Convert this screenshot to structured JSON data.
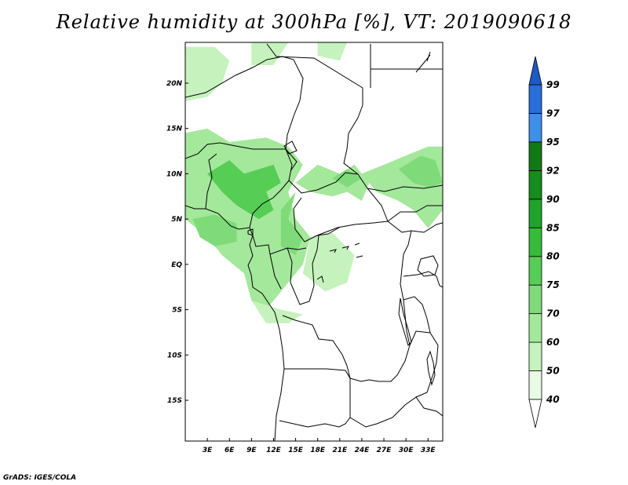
{
  "title": "Relative humidity at 300hPa [%], VT: 2019090618",
  "credit": "GrADS: IGES/COLA",
  "map": {
    "projection": "lat-lon",
    "lon_range": [
      0,
      35
    ],
    "lat_range": [
      -19.5,
      24.5
    ],
    "lat_labels": [
      "20N",
      "15N",
      "10N",
      "5N",
      "EQ",
      "5S",
      "10S",
      "15S"
    ],
    "lat_values": [
      20,
      15,
      10,
      5,
      0,
      -5,
      -10,
      -15
    ],
    "lon_labels": [
      "3E",
      "6E",
      "9E",
      "12E",
      "15E",
      "18E",
      "21E",
      "24E",
      "27E",
      "30E",
      "33E"
    ],
    "lon_values": [
      3,
      6,
      9,
      12,
      15,
      18,
      21,
      24,
      27,
      30,
      33
    ],
    "border_color": "#000000",
    "humidity_areas": [
      {
        "level": 50,
        "points": [
          [
            0,
            24
          ],
          [
            4,
            24
          ],
          [
            6,
            22.5
          ],
          [
            5,
            20
          ],
          [
            3,
            18.5
          ],
          [
            0,
            18
          ]
        ]
      },
      {
        "level": 50,
        "points": [
          [
            9,
            24.5
          ],
          [
            14,
            24.5
          ],
          [
            12,
            22
          ],
          [
            9,
            22
          ]
        ]
      },
      {
        "level": 50,
        "points": [
          [
            18,
            24.5
          ],
          [
            22,
            24.5
          ],
          [
            21,
            22.5
          ],
          [
            18,
            23
          ]
        ]
      },
      {
        "level": 60,
        "points": [
          [
            0,
            14.5
          ],
          [
            3,
            15
          ],
          [
            6,
            13.5
          ],
          [
            11,
            14
          ],
          [
            14,
            13
          ],
          [
            16,
            11
          ],
          [
            14,
            8
          ],
          [
            15,
            5
          ],
          [
            17,
            3
          ],
          [
            16,
            0
          ],
          [
            14,
            -2
          ],
          [
            11,
            -5
          ],
          [
            9,
            -4
          ],
          [
            8,
            -1
          ],
          [
            5,
            1
          ],
          [
            3,
            3
          ],
          [
            0,
            5
          ]
        ]
      },
      {
        "level": 70,
        "points": [
          [
            1,
            5
          ],
          [
            4,
            5.5
          ],
          [
            7,
            4.5
          ],
          [
            7,
            2.5
          ],
          [
            4,
            2
          ],
          [
            2,
            3
          ]
        ]
      },
      {
        "level": 75,
        "points": [
          [
            3,
            10
          ],
          [
            6,
            11.5
          ],
          [
            8,
            10
          ],
          [
            12,
            11
          ],
          [
            13,
            9
          ],
          [
            11,
            8
          ],
          [
            12,
            6
          ],
          [
            10,
            5
          ],
          [
            7,
            6.5
          ],
          [
            5,
            8
          ]
        ]
      },
      {
        "level": 70,
        "points": [
          [
            13,
            6
          ],
          [
            15,
            8
          ],
          [
            14,
            5
          ],
          [
            16,
            3
          ],
          [
            15,
            1
          ],
          [
            13,
            2
          ]
        ]
      },
      {
        "level": 60,
        "points": [
          [
            15,
            9
          ],
          [
            18,
            11
          ],
          [
            21,
            10
          ],
          [
            23,
            11
          ],
          [
            25,
            9
          ],
          [
            24,
            7
          ],
          [
            22,
            8
          ],
          [
            20,
            7.5
          ],
          [
            17,
            8
          ]
        ]
      },
      {
        "level": 70,
        "points": [
          [
            20,
            9.5
          ],
          [
            22,
            10.5
          ],
          [
            24,
            9.5
          ],
          [
            22,
            8.5
          ]
        ]
      },
      {
        "level": 60,
        "points": [
          [
            24,
            10
          ],
          [
            27,
            11
          ],
          [
            30,
            12
          ],
          [
            33,
            13
          ],
          [
            35,
            13
          ],
          [
            35,
            6
          ],
          [
            33,
            4
          ],
          [
            31,
            6
          ],
          [
            29,
            7
          ],
          [
            26,
            8
          ]
        ]
      },
      {
        "level": 70,
        "points": [
          [
            29,
            10.5
          ],
          [
            32,
            12
          ],
          [
            34,
            11.5
          ],
          [
            35,
            9
          ],
          [
            33,
            8.5
          ],
          [
            31,
            9
          ]
        ]
      },
      {
        "level": 50,
        "points": [
          [
            17,
            3
          ],
          [
            20,
            3.5
          ],
          [
            23,
            1
          ],
          [
            22,
            -2
          ],
          [
            19,
            -3
          ],
          [
            16,
            -1
          ]
        ]
      },
      {
        "level": 50,
        "points": [
          [
            9,
            -4
          ],
          [
            13,
            -5
          ],
          [
            16,
            -5.5
          ],
          [
            14,
            -6.5
          ],
          [
            11,
            -6.5
          ]
        ]
      }
    ]
  },
  "colorbar": {
    "levels": [
      40,
      50,
      60,
      70,
      75,
      80,
      85,
      90,
      92,
      95,
      97,
      99
    ],
    "colors": [
      "#ffffff",
      "#e8fbe3",
      "#c6f2bd",
      "#a4e89b",
      "#7fdb79",
      "#56cd55",
      "#36bb3a",
      "#1fa32a",
      "#158c1d",
      "#127a14",
      "#3d8fe8",
      "#2a6fd8",
      "#1c5ac4"
    ]
  }
}
